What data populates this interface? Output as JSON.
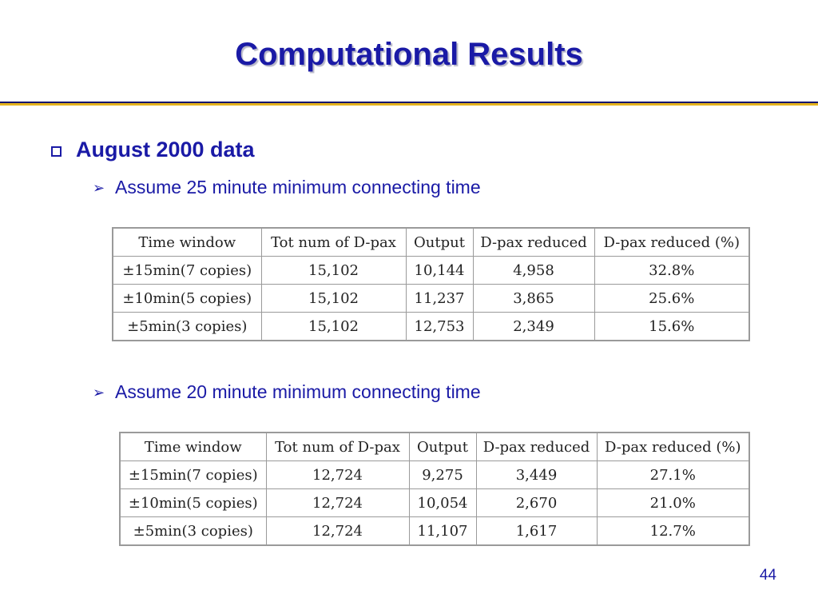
{
  "slide": {
    "title": "Computational Results",
    "bullet": "August 2000 data",
    "sub1": "Assume 25 minute minimum connecting time",
    "sub2": "Assume 20 minute minimum connecting time",
    "page_number": "44"
  },
  "table1": {
    "headers": [
      "Time window",
      "Tot num of D-pax",
      "Output",
      "D-pax reduced",
      "D-pax reduced (%)"
    ],
    "rows": [
      [
        "±15min(7 copies)",
        "15,102",
        "10,144",
        "4,958",
        "32.8%"
      ],
      [
        "±10min(5 copies)",
        "15,102",
        "11,237",
        "3,865",
        "25.6%"
      ],
      [
        "±5min(3 copies)",
        "15,102",
        "12,753",
        "2,349",
        "15.6%"
      ]
    ]
  },
  "table2": {
    "headers": [
      "Time window",
      "Tot num of D-pax",
      "Output",
      "D-pax reduced",
      "D-pax reduced (%)"
    ],
    "rows": [
      [
        "±15min(7 copies)",
        "12,724",
        "9,275",
        "3,449",
        "27.1%"
      ],
      [
        "±10min(5 copies)",
        "12,724",
        "10,054",
        "2,670",
        "21.0%"
      ],
      [
        "±5min(3 copies)",
        "12,724",
        "11,107",
        "1,617",
        "12.7%"
      ]
    ]
  },
  "colors": {
    "title": "#1a1aa6",
    "rule_dark": "#15156e",
    "rule_gold": "#e3b21e"
  }
}
